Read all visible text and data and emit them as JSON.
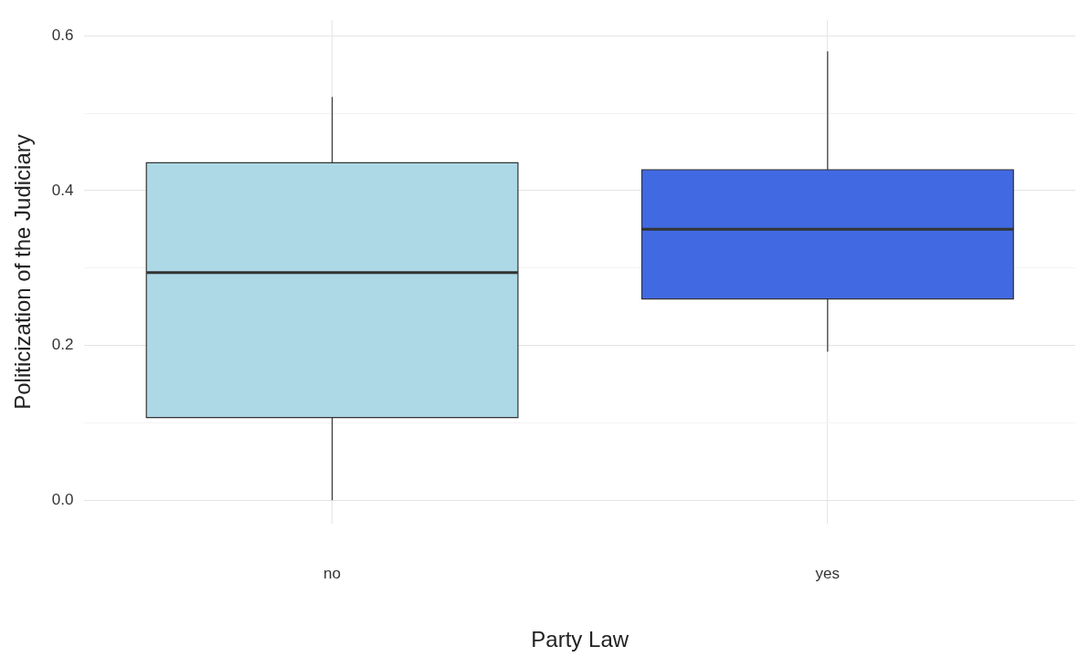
{
  "chart_data": {
    "type": "box",
    "xlabel": "Party Law",
    "ylabel": "Politicization of the Judiciary",
    "categories": [
      "no",
      "yes"
    ],
    "boxes": [
      {
        "low": 0.0,
        "q1": 0.107,
        "median": 0.294,
        "q3": 0.436,
        "high": 0.521
      },
      {
        "low": 0.192,
        "q1": 0.26,
        "median": 0.35,
        "q3": 0.427,
        "high": 0.58
      }
    ],
    "colors": [
      "#add8e6",
      "#4169e1"
    ],
    "ylim": [
      -0.03,
      0.62
    ],
    "yticks": [
      {
        "value": 0,
        "label": "0.0"
      },
      {
        "value": 0.1,
        "label": null
      },
      {
        "value": 0.2,
        "label": "0.2"
      },
      {
        "value": 0.3,
        "label": null
      },
      {
        "value": 0.4,
        "label": "0.4"
      },
      {
        "value": 0.5,
        "label": null
      },
      {
        "value": 0.6,
        "label": "0.6"
      }
    ],
    "grid": true,
    "legend": false
  }
}
